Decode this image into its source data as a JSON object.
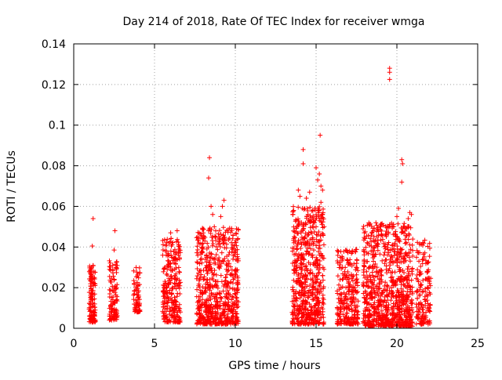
{
  "chart_data": {
    "type": "scatter",
    "title": "Day 214 of 2018, Rate Of TEC Index for receiver wmga",
    "xlabel": "GPS time / hours",
    "ylabel": "ROTI / TECUs",
    "xlim": [
      0,
      25
    ],
    "ylim": [
      0,
      0.14
    ],
    "xticks": [
      0,
      5,
      10,
      15,
      20,
      25
    ],
    "yticks": [
      0,
      0.02,
      0.04,
      0.06,
      0.08,
      0.1,
      0.12,
      0.14
    ],
    "xtick_labels": [
      "0",
      "5",
      "10",
      "15",
      "20",
      "25"
    ],
    "ytick_labels": [
      "0",
      "0.02",
      "0.04",
      "0.06",
      "0.08",
      "0.1",
      "0.12",
      "0.14"
    ],
    "grid": true,
    "marker": "+",
    "series": [
      {
        "name": "ROTI",
        "color": "#ff0000",
        "clusters": [
          {
            "x_range": [
              0.95,
              1.35
            ],
            "y_range": [
              0.003,
              0.031
            ],
            "count": 120
          },
          {
            "x_range": [
              2.2,
              2.7
            ],
            "y_range": [
              0.004,
              0.034
            ],
            "count": 110
          },
          {
            "x_range": [
              3.7,
              4.1
            ],
            "y_range": [
              0.008,
              0.03
            ],
            "count": 70
          },
          {
            "x_range": [
              5.5,
              6.6
            ],
            "y_range": [
              0.003,
              0.045
            ],
            "count": 260
          },
          {
            "x_range": [
              7.6,
              10.2
            ],
            "y_range": [
              0.002,
              0.05
            ],
            "count": 650
          },
          {
            "x_range": [
              13.5,
              15.5
            ],
            "y_range": [
              0.002,
              0.06
            ],
            "count": 600
          },
          {
            "x_range": [
              16.3,
              17.6
            ],
            "y_range": [
              0.002,
              0.039
            ],
            "count": 260
          },
          {
            "x_range": [
              17.9,
              21.0
            ],
            "y_range": [
              0.001,
              0.052
            ],
            "count": 850
          },
          {
            "x_range": [
              21.2,
              22.1
            ],
            "y_range": [
              0.002,
              0.044
            ],
            "count": 160
          }
        ],
        "outliers": [
          [
            1.2,
            0.054
          ],
          [
            1.15,
            0.0405
          ],
          [
            2.55,
            0.048
          ],
          [
            2.5,
            0.0385
          ],
          [
            6.0,
            0.047
          ],
          [
            6.4,
            0.048
          ],
          [
            5.9,
            0.042
          ],
          [
            8.4,
            0.084
          ],
          [
            8.35,
            0.074
          ],
          [
            8.5,
            0.06
          ],
          [
            8.6,
            0.056
          ],
          [
            9.3,
            0.063
          ],
          [
            9.2,
            0.06
          ],
          [
            9.1,
            0.055
          ],
          [
            9.0,
            0.045
          ],
          [
            8.7,
            0.05
          ],
          [
            13.9,
            0.068
          ],
          [
            14.0,
            0.065
          ],
          [
            14.2,
            0.088
          ],
          [
            14.2,
            0.081
          ],
          [
            14.3,
            0.059
          ],
          [
            14.4,
            0.064
          ],
          [
            14.5,
            0.056
          ],
          [
            14.6,
            0.067
          ],
          [
            14.8,
            0.058
          ],
          [
            15.0,
            0.079
          ],
          [
            15.1,
            0.073
          ],
          [
            15.2,
            0.076
          ],
          [
            15.25,
            0.095
          ],
          [
            15.3,
            0.07
          ],
          [
            15.4,
            0.068
          ],
          [
            15.3,
            0.062
          ],
          [
            15.0,
            0.05
          ],
          [
            14.9,
            0.052
          ],
          [
            19.55,
            0.128
          ],
          [
            19.55,
            0.126
          ],
          [
            19.55,
            0.1225
          ],
          [
            20.3,
            0.083
          ],
          [
            20.35,
            0.081
          ],
          [
            20.3,
            0.072
          ],
          [
            20.1,
            0.059
          ],
          [
            20.0,
            0.055
          ],
          [
            20.8,
            0.057
          ],
          [
            20.9,
            0.056
          ],
          [
            20.7,
            0.054
          ],
          [
            19.8,
            0.05
          ],
          [
            19.0,
            0.05
          ]
        ]
      }
    ]
  }
}
